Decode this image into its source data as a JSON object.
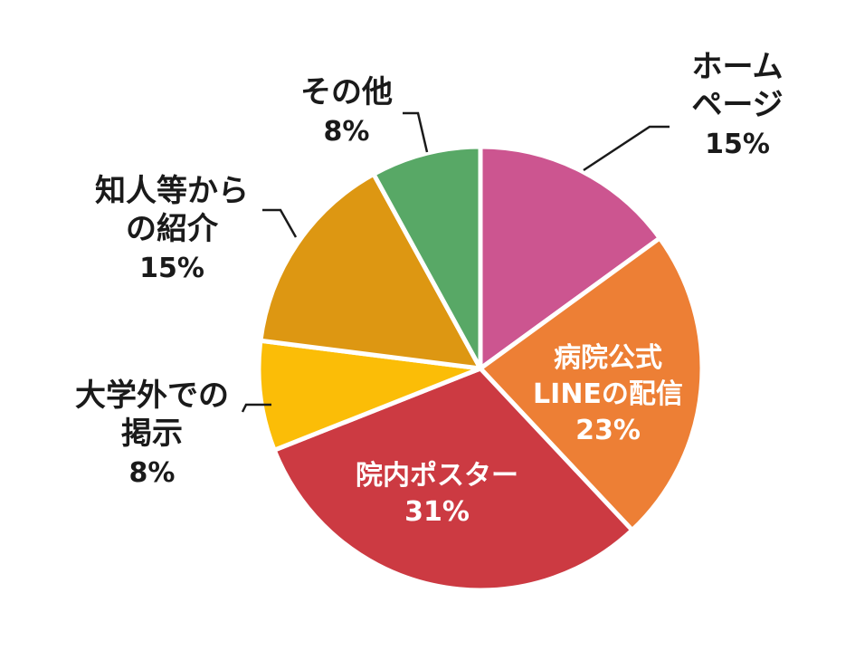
{
  "chart_data": {
    "type": "pie",
    "title": "",
    "start_angle_deg": 0,
    "direction": "clockwise",
    "slices": [
      {
        "label_lines": [
          "ホーム",
          "ページ"
        ],
        "label": "ホームページ",
        "value": 15,
        "value_label": "15%",
        "color": "#cc5590",
        "label_position": "outside"
      },
      {
        "label_lines": [
          "病院公式",
          "LINEの配信"
        ],
        "label": "病院公式LINEの配信",
        "value": 23,
        "value_label": "23%",
        "color": "#ed7f35",
        "label_position": "inside"
      },
      {
        "label_lines": [
          "院内ポスター"
        ],
        "label": "院内ポスター",
        "value": 31,
        "value_label": "31%",
        "color": "#cc3a42",
        "label_position": "inside"
      },
      {
        "label_lines": [
          "大学外での",
          "掲示"
        ],
        "label": "大学外での掲示",
        "value": 8,
        "value_label": "8%",
        "color": "#fbbd07",
        "label_position": "outside"
      },
      {
        "label_lines": [
          "知人等から",
          "の紹介"
        ],
        "label": "知人等からの紹介",
        "value": 15,
        "value_label": "15%",
        "color": "#dd9712",
        "label_position": "outside"
      },
      {
        "label_lines": [
          "その他"
        ],
        "label": "その他",
        "value": 8,
        "value_label": "8%",
        "color": "#58a866",
        "label_position": "outside"
      }
    ]
  }
}
